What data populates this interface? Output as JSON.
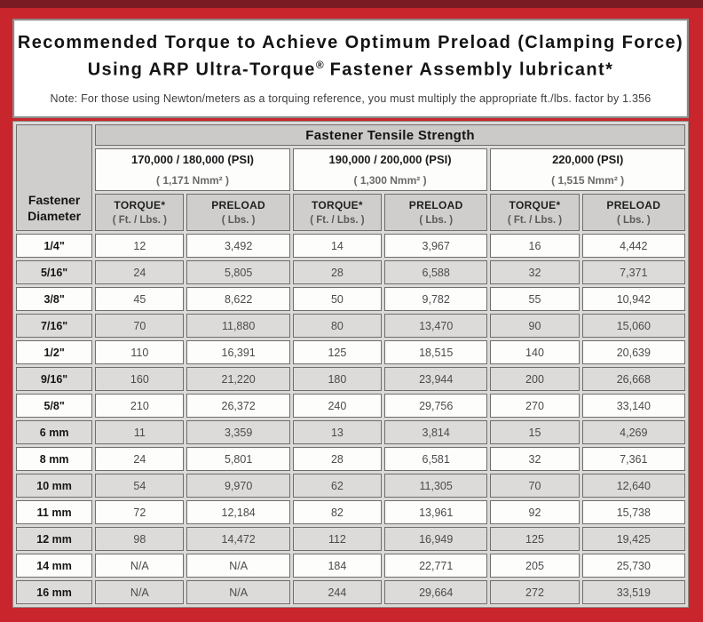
{
  "page": {
    "background_color": "#c8262c",
    "top_strip_color": "#7a1a23"
  },
  "header": {
    "title_line1": "Recommended Torque to Achieve Optimum Preload (Clamping Force)",
    "title_line2_prefix": "Using ARP Ultra-Torque",
    "title_line2_sup": "®",
    "title_line2_suffix": " Fastener Assembly lubricant*",
    "note": "Note: For those using Newton/meters as a torquing reference, you must multiply the appropriate ft./lbs. factor by 1.356"
  },
  "table": {
    "corner_header": {
      "line1": "Fastener",
      "line2": "Diameter"
    },
    "group_header": "Fastener Tensile Strength",
    "strength_groups": [
      {
        "psi": "170,000 / 180,000 (PSI)",
        "nmm": "( 1,171 Nmm² )"
      },
      {
        "psi": "190,000 / 200,000 (PSI)",
        "nmm": "( 1,300 Nmm² )"
      },
      {
        "psi": "220,000 (PSI)",
        "nmm": "( 1,515 Nmm² )"
      }
    ],
    "col_headers": {
      "torque_label": "TORQUE*",
      "torque_sub": "( Ft. / Lbs. )",
      "preload_label": "PRELOAD",
      "preload_sub": "( Lbs. )"
    },
    "rows": [
      {
        "diameter": "1/4\"",
        "values": [
          "12",
          "3,492",
          "14",
          "3,967",
          "16",
          "4,442"
        ]
      },
      {
        "diameter": "5/16\"",
        "values": [
          "24",
          "5,805",
          "28",
          "6,588",
          "32",
          "7,371"
        ]
      },
      {
        "diameter": "3/8\"",
        "values": [
          "45",
          "8,622",
          "50",
          "9,782",
          "55",
          "10,942"
        ]
      },
      {
        "diameter": "7/16\"",
        "values": [
          "70",
          "11,880",
          "80",
          "13,470",
          "90",
          "15,060"
        ]
      },
      {
        "diameter": "1/2\"",
        "values": [
          "110",
          "16,391",
          "125",
          "18,515",
          "140",
          "20,639"
        ]
      },
      {
        "diameter": "9/16\"",
        "values": [
          "160",
          "21,220",
          "180",
          "23,944",
          "200",
          "26,668"
        ]
      },
      {
        "diameter": "5/8\"",
        "values": [
          "210",
          "26,372",
          "240",
          "29,756",
          "270",
          "33,140"
        ]
      },
      {
        "diameter": "6 mm",
        "values": [
          "11",
          "3,359",
          "13",
          "3,814",
          "15",
          "4,269"
        ]
      },
      {
        "diameter": "8 mm",
        "values": [
          "24",
          "5,801",
          "28",
          "6,581",
          "32",
          "7,361"
        ]
      },
      {
        "diameter": "10 mm",
        "values": [
          "54",
          "9,970",
          "62",
          "11,305",
          "70",
          "12,640"
        ]
      },
      {
        "diameter": "11 mm",
        "values": [
          "72",
          "12,184",
          "82",
          "13,961",
          "92",
          "15,738"
        ]
      },
      {
        "diameter": "12 mm",
        "values": [
          "98",
          "14,472",
          "112",
          "16,949",
          "125",
          "19,425"
        ]
      },
      {
        "diameter": "14 mm",
        "values": [
          "N/A",
          "N/A",
          "184",
          "22,771",
          "205",
          "25,730"
        ]
      },
      {
        "diameter": "16 mm",
        "values": [
          "N/A",
          "N/A",
          "244",
          "29,664",
          "272",
          "33,519"
        ]
      }
    ]
  }
}
